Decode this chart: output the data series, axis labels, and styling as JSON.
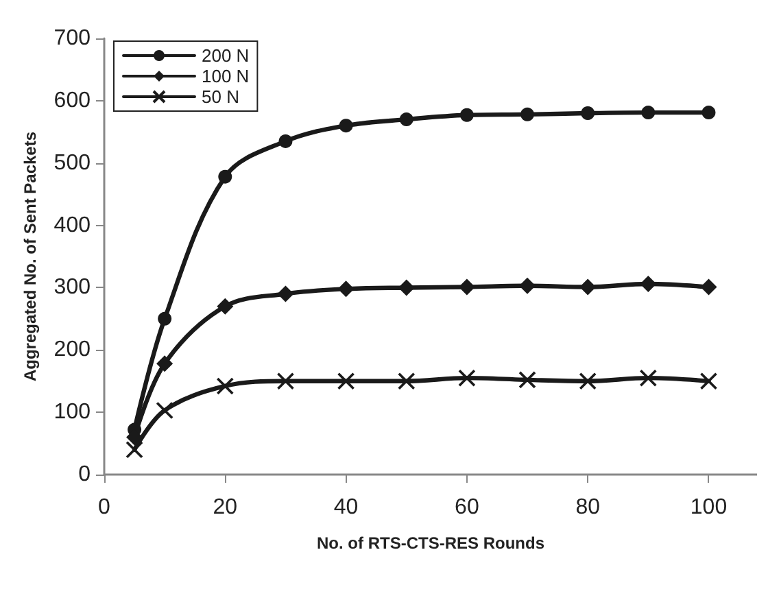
{
  "chart_data": {
    "type": "line",
    "xlabel": "No. of RTS-CTS-RES Rounds",
    "ylabel": "Aggregated No. of Sent Packets",
    "x": [
      5,
      10,
      20,
      30,
      40,
      50,
      60,
      70,
      80,
      90,
      100
    ],
    "series": [
      {
        "name": "200 N",
        "color": "#1a1a1a",
        "marker": "circle",
        "values": [
          72,
          250,
          478,
          535,
          560,
          570,
          577,
          578,
          580,
          581,
          581
        ]
      },
      {
        "name": "100 N",
        "color": "#1a1a1a",
        "marker": "diamond",
        "values": [
          60,
          178,
          270,
          290,
          298,
          300,
          301,
          303,
          301,
          306,
          301
        ]
      },
      {
        "name": "50 N",
        "color": "#1a1a1a",
        "marker": "cross",
        "values": [
          40,
          103,
          142,
          150,
          150,
          150,
          155,
          152,
          150,
          155,
          150
        ]
      }
    ],
    "xlim": [
      0,
      108
    ],
    "xticks": [
      0,
      20,
      40,
      60,
      80,
      100
    ],
    "ylim": [
      0,
      700
    ],
    "yticks": [
      0,
      100,
      200,
      300,
      400,
      500,
      600,
      700
    ],
    "grid": false,
    "legend": "top left",
    "line_style": "solid"
  }
}
